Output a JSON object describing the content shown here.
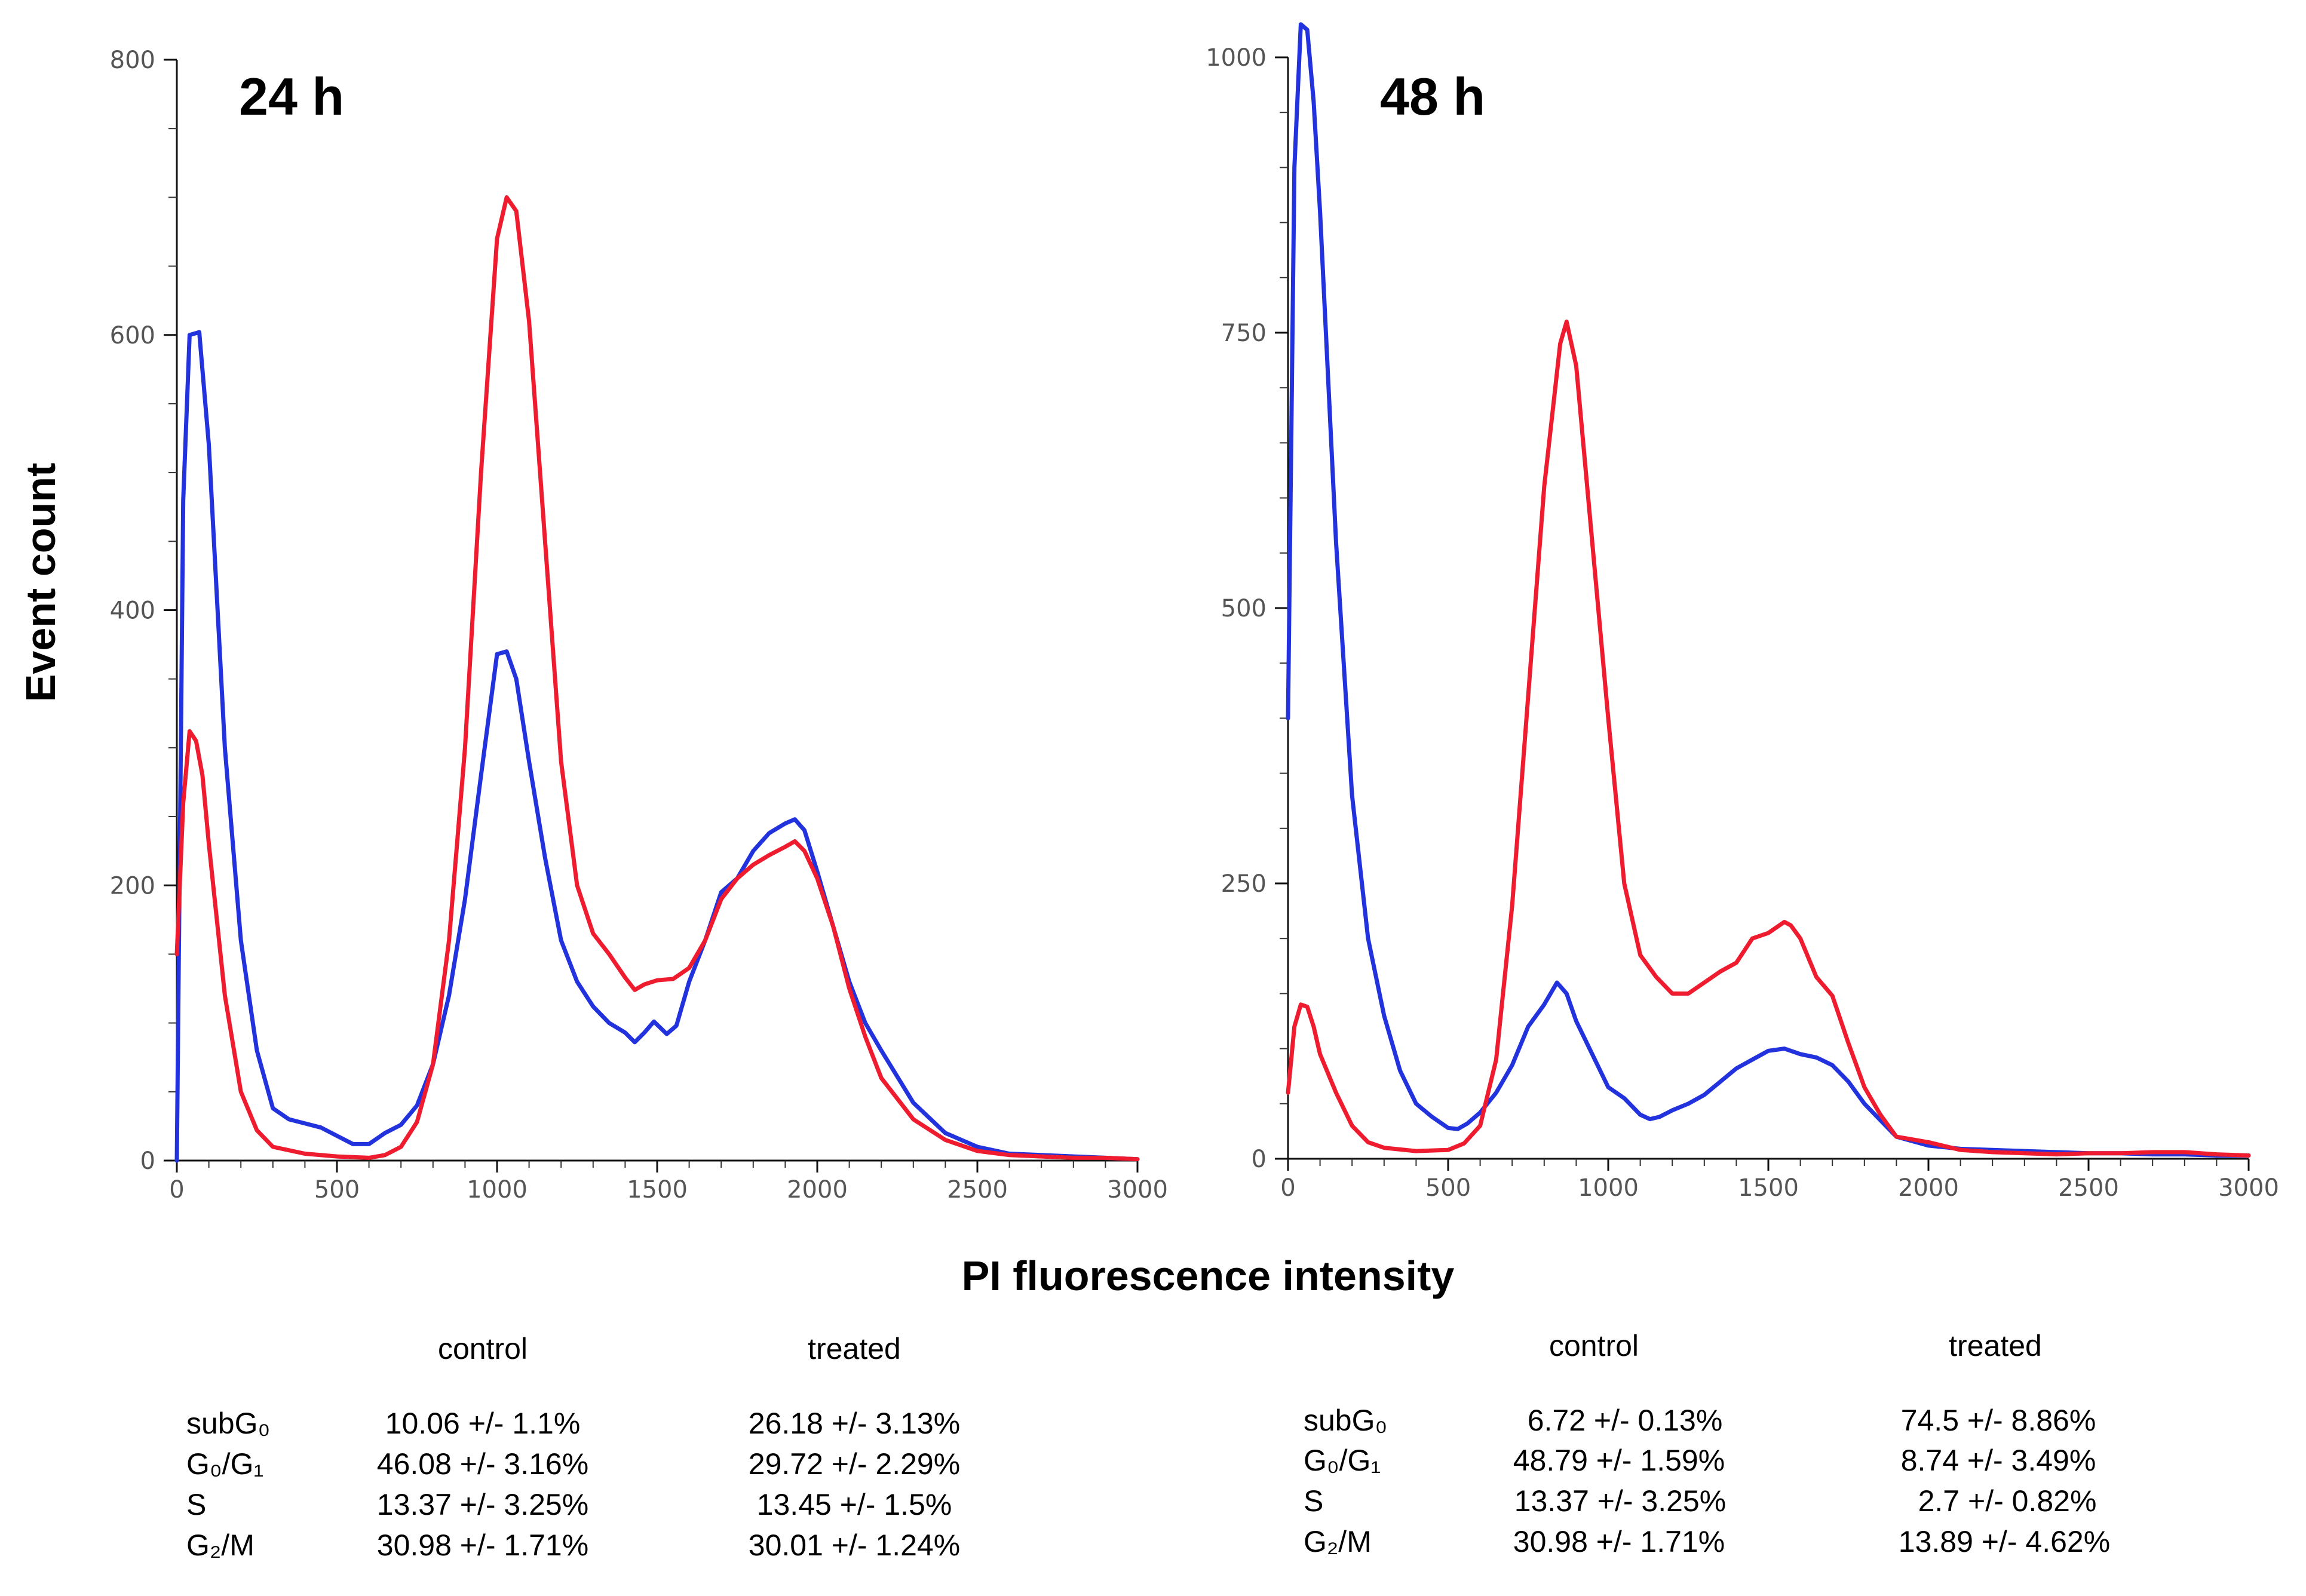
{
  "chart_data": [
    {
      "type": "line",
      "title": "24 h",
      "xlabel": "PI fluorescence intensity",
      "ylabel": "Event count",
      "xlim": [
        0,
        3000
      ],
      "ylim": [
        0,
        800
      ],
      "xticks": [
        "0",
        "500",
        "1000",
        "1500",
        "2000",
        "2500",
        "3000"
      ],
      "yticks": [
        "0",
        "200",
        "400",
        "600",
        "800"
      ],
      "series": [
        {
          "name": "control",
          "color": "#2233dd",
          "x": [
            0,
            20,
            40,
            70,
            100,
            150,
            200,
            250,
            300,
            350,
            450,
            550,
            600,
            650,
            700,
            750,
            800,
            850,
            900,
            950,
            1000,
            1030,
            1060,
            1100,
            1150,
            1200,
            1250,
            1300,
            1350,
            1400,
            1430,
            1460,
            1490,
            1530,
            1560,
            1600,
            1650,
            1700,
            1750,
            1800,
            1850,
            1900,
            1930,
            1960,
            2000,
            2050,
            2100,
            2150,
            2200,
            2300,
            2400,
            2500,
            2600,
            2700,
            2800,
            2900,
            3000
          ],
          "y": [
            0,
            480,
            600,
            602,
            520,
            300,
            160,
            80,
            38,
            30,
            24,
            12,
            12,
            20,
            26,
            40,
            70,
            120,
            190,
            280,
            368,
            370,
            350,
            290,
            220,
            160,
            130,
            112,
            100,
            93,
            86,
            93,
            101,
            92,
            98,
            130,
            160,
            195,
            205,
            225,
            238,
            245,
            248,
            240,
            210,
            170,
            130,
            100,
            80,
            42,
            20,
            10,
            5,
            4,
            3,
            2,
            1
          ]
        },
        {
          "name": "treated",
          "color": "#ee1c2e",
          "x": [
            0,
            20,
            40,
            60,
            80,
            100,
            150,
            200,
            250,
            300,
            400,
            500,
            600,
            650,
            700,
            750,
            800,
            850,
            900,
            950,
            1000,
            1030,
            1060,
            1100,
            1150,
            1200,
            1250,
            1300,
            1350,
            1400,
            1430,
            1460,
            1500,
            1550,
            1600,
            1650,
            1700,
            1750,
            1800,
            1850,
            1900,
            1930,
            1960,
            2000,
            2050,
            2100,
            2150,
            2200,
            2300,
            2400,
            2500,
            2600,
            2700,
            2800,
            2900,
            3000
          ],
          "y": [
            150,
            260,
            312,
            305,
            280,
            230,
            120,
            50,
            22,
            10,
            5,
            3,
            2,
            4,
            10,
            28,
            70,
            160,
            300,
            500,
            670,
            700,
            690,
            610,
            450,
            290,
            200,
            165,
            150,
            133,
            124,
            128,
            131,
            132,
            140,
            160,
            190,
            205,
            215,
            222,
            228,
            232,
            225,
            205,
            170,
            125,
            90,
            60,
            30,
            15,
            7,
            4,
            3,
            2,
            2,
            1
          ]
        }
      ]
    },
    {
      "type": "line",
      "title": "48 h",
      "xlabel": "PI fluorescence intensity",
      "ylabel": "Event count",
      "xlim": [
        0,
        3000
      ],
      "ylim": [
        0,
        1000
      ],
      "xticks": [
        "0",
        "500",
        "1000",
        "1500",
        "2000",
        "2500",
        "3000"
      ],
      "yticks": [
        "0",
        "250",
        "500",
        "750",
        "1000"
      ],
      "series": [
        {
          "name": "control",
          "color": "#2233dd",
          "x": [
            0,
            20,
            40,
            60,
            80,
            100,
            150,
            200,
            250,
            300,
            350,
            400,
            450,
            500,
            530,
            560,
            600,
            650,
            700,
            750,
            800,
            840,
            870,
            900,
            950,
            1000,
            1050,
            1100,
            1130,
            1160,
            1200,
            1250,
            1300,
            1350,
            1400,
            1450,
            1500,
            1550,
            1600,
            1650,
            1700,
            1750,
            1800,
            1850,
            1900,
            2000,
            2100,
            2200,
            2300,
            2400,
            2500,
            2600,
            2700,
            2800,
            2900,
            3000
          ],
          "y": [
            400,
            900,
            1030,
            1025,
            960,
            860,
            560,
            330,
            200,
            130,
            80,
            50,
            38,
            28,
            27,
            32,
            42,
            60,
            85,
            120,
            140,
            160,
            150,
            125,
            95,
            65,
            55,
            40,
            36,
            38,
            44,
            50,
            58,
            70,
            82,
            90,
            98,
            100,
            95,
            92,
            85,
            70,
            50,
            35,
            20,
            12,
            9,
            8,
            7,
            6,
            5,
            5,
            4,
            4,
            3,
            3
          ]
        },
        {
          "name": "treated",
          "color": "#ee1c2e",
          "x": [
            0,
            20,
            40,
            60,
            80,
            100,
            150,
            200,
            250,
            300,
            400,
            500,
            550,
            600,
            650,
            700,
            750,
            800,
            850,
            870,
            900,
            950,
            1000,
            1050,
            1100,
            1150,
            1200,
            1250,
            1300,
            1350,
            1400,
            1450,
            1500,
            1550,
            1570,
            1600,
            1650,
            1700,
            1750,
            1800,
            1850,
            1900,
            2000,
            2100,
            2200,
            2300,
            2400,
            2500,
            2600,
            2700,
            2800,
            2900,
            3000
          ],
          "y": [
            60,
            120,
            140,
            138,
            120,
            95,
            60,
            30,
            15,
            10,
            7,
            8,
            14,
            30,
            90,
            230,
            420,
            610,
            740,
            760,
            720,
            560,
            400,
            250,
            185,
            165,
            150,
            150,
            160,
            170,
            178,
            200,
            205,
            215,
            212,
            200,
            165,
            148,
            105,
            65,
            40,
            20,
            15,
            8,
            6,
            5,
            4,
            5,
            5,
            6,
            6,
            4,
            3
          ]
        }
      ]
    }
  ],
  "labels": {
    "y_axis_title": "Event count",
    "x_axis_title": "PI fluorescence intensity"
  },
  "tables": [
    {
      "col_control": "control",
      "col_treated": "treated",
      "rows": [
        {
          "phase": "subG₀",
          "control": "10.06 +/- 1.1%",
          "treated": "26.18 +/- 3.13%"
        },
        {
          "phase": "G₀/G₁",
          "control": "46.08 +/- 3.16%",
          "treated": "29.72 +/- 2.29%"
        },
        {
          "phase": "S",
          "control": "13.37 +/- 3.25%",
          "treated": "13.45 +/- 1.5%"
        },
        {
          "phase": "G₂/M",
          "control": "30.98 +/- 1.71%",
          "treated": "30.01 +/- 1.24%"
        }
      ]
    },
    {
      "col_control": "control",
      "col_treated": "treated",
      "rows": [
        {
          "phase": "subG₀",
          "control": "6.72 +/- 0.13%",
          "treated": "74.5 +/- 8.86%"
        },
        {
          "phase": "G₀/G₁",
          "control": "48.79 +/- 1.59%",
          "treated": "8.74 +/- 3.49%"
        },
        {
          "phase": "S",
          "control": "13.37 +/- 3.25%",
          "treated": "2.7 +/- 0.82%"
        },
        {
          "phase": "G₂/M",
          "control": "30.98 +/- 1.71%",
          "treated": "13.89 +/- 4.62%"
        }
      ]
    }
  ]
}
